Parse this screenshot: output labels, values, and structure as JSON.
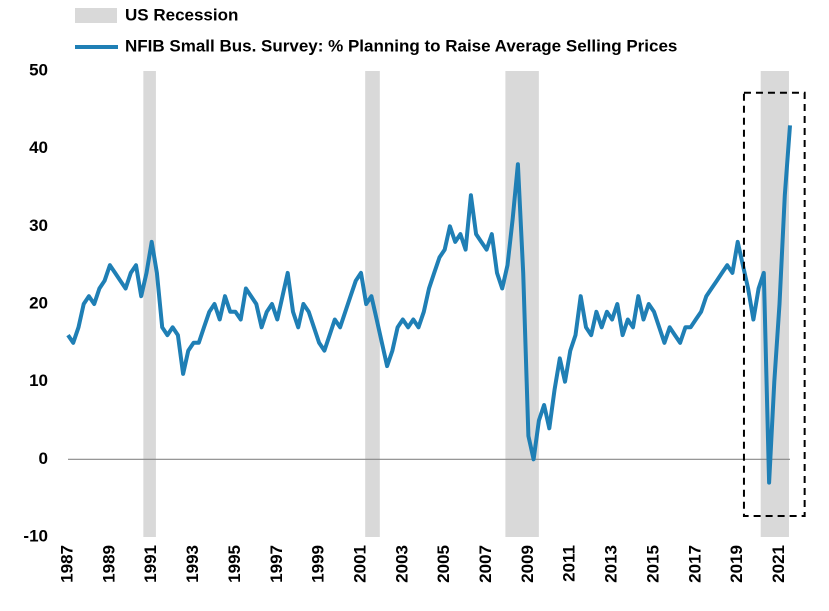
{
  "chart_data": {
    "type": "line",
    "recession_label": "US Recession",
    "recession_color": "#d9d9d9",
    "recessions": [
      [
        1990.6,
        1991.2
      ],
      [
        2001.2,
        2001.9
      ],
      [
        2007.9,
        2009.5
      ],
      [
        2020.1,
        2021.45
      ]
    ],
    "highlight_box": {
      "x": [
        2019.3,
        2022.2
      ],
      "y": [
        -7.3,
        47.2
      ]
    },
    "xlim": [
      1987,
      2021.5
    ],
    "xticks": [
      1987,
      1989,
      1991,
      1993,
      1995,
      1997,
      1999,
      2001,
      2003,
      2005,
      2007,
      2009,
      2011,
      2013,
      2015,
      2017,
      2019,
      2021
    ],
    "ylim": [
      -10,
      50
    ],
    "yticks": [
      -10,
      0,
      10,
      20,
      30,
      40,
      50
    ],
    "x": [
      1987,
      1987.25,
      1987.5,
      1987.75,
      1988,
      1988.25,
      1988.5,
      1988.75,
      1989,
      1989.25,
      1989.5,
      1989.75,
      1990,
      1990.25,
      1990.5,
      1990.75,
      1991,
      1991.25,
      1991.5,
      1991.75,
      1992,
      1992.25,
      1992.5,
      1992.75,
      1993,
      1993.25,
      1993.5,
      1993.75,
      1994,
      1994.25,
      1994.5,
      1994.75,
      1995,
      1995.25,
      1995.5,
      1995.75,
      1996,
      1996.25,
      1996.5,
      1996.75,
      1997,
      1997.25,
      1997.5,
      1997.75,
      1998,
      1998.25,
      1998.5,
      1998.75,
      1999,
      1999.25,
      1999.5,
      1999.75,
      2000,
      2000.25,
      2000.5,
      2000.75,
      2001,
      2001.25,
      2001.5,
      2001.75,
      2002,
      2002.25,
      2002.5,
      2002.75,
      2003,
      2003.25,
      2003.5,
      2003.75,
      2004,
      2004.25,
      2004.5,
      2004.75,
      2005,
      2005.25,
      2005.5,
      2005.75,
      2006,
      2006.25,
      2006.5,
      2006.75,
      2007,
      2007.25,
      2007.5,
      2007.75,
      2008,
      2008.25,
      2008.5,
      2008.75,
      2009,
      2009.25,
      2009.5,
      2009.75,
      2010,
      2010.25,
      2010.5,
      2010.75,
      2011,
      2011.25,
      2011.5,
      2011.75,
      2012,
      2012.25,
      2012.5,
      2012.75,
      2013,
      2013.25,
      2013.5,
      2013.75,
      2014,
      2014.25,
      2014.5,
      2014.75,
      2015,
      2015.25,
      2015.5,
      2015.75,
      2016,
      2016.25,
      2016.5,
      2016.75,
      2017,
      2017.25,
      2017.5,
      2017.75,
      2018,
      2018.25,
      2018.5,
      2018.75,
      2019,
      2019.25,
      2019.5,
      2019.75,
      2020,
      2020.25,
      2020.5,
      2020.75,
      2021,
      2021.25,
      2021.5
    ],
    "series": [
      {
        "name": "NFIB Small Bus. Survey: % Planning to Raise Average Selling Prices",
        "color": "#1f7fb5",
        "values": [
          16,
          15,
          17,
          20,
          21,
          20,
          22,
          23,
          25,
          24,
          23,
          22,
          24,
          25,
          21,
          24,
          28,
          24,
          17,
          16,
          17,
          16,
          11,
          14,
          15,
          15,
          17,
          19,
          20,
          18,
          21,
          19,
          19,
          18,
          22,
          21,
          20,
          17,
          19,
          20,
          18,
          21,
          24,
          19,
          17,
          20,
          19,
          17,
          15,
          14,
          16,
          18,
          17,
          19,
          21,
          23,
          24,
          20,
          21,
          18,
          15,
          12,
          14,
          17,
          18,
          17,
          18,
          17,
          19,
          22,
          24,
          26,
          27,
          30,
          28,
          29,
          27,
          34,
          29,
          28,
          27,
          29,
          24,
          22,
          25,
          31,
          38,
          24,
          3,
          0,
          5,
          7,
          4,
          9,
          13,
          10,
          14,
          16,
          21,
          17,
          16,
          19,
          17,
          19,
          18,
          20,
          16,
          18,
          17,
          21,
          18,
          20,
          19,
          17,
          15,
          17,
          16,
          15,
          17,
          17,
          18,
          19,
          21,
          22,
          23,
          24,
          25,
          24,
          28,
          25,
          22,
          18,
          22,
          24,
          -3,
          10,
          20,
          34,
          43
        ]
      }
    ]
  }
}
